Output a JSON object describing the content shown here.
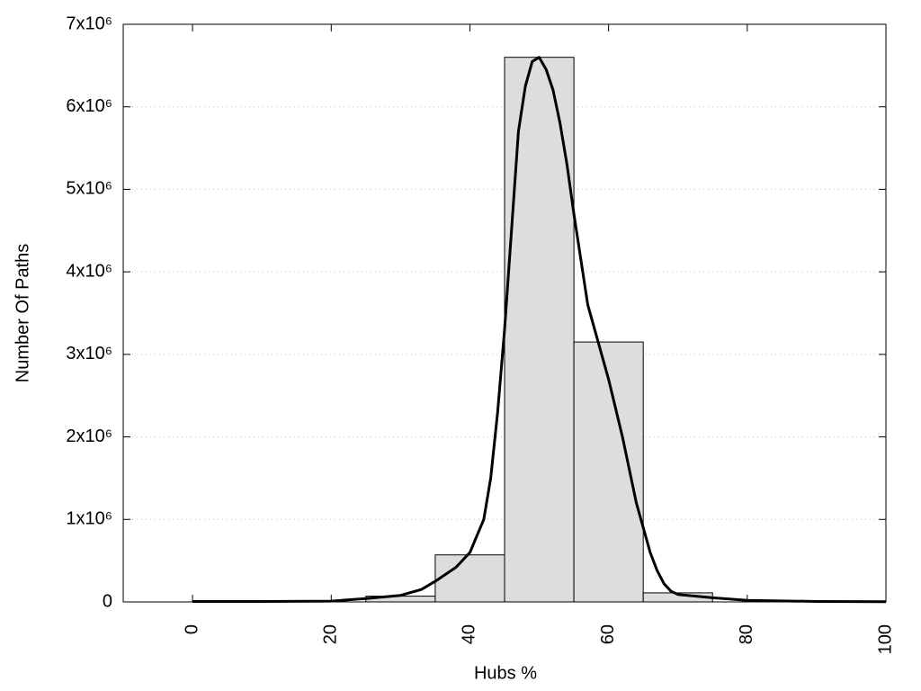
{
  "chart_data": {
    "type": "histogram",
    "xlabel": "Hubs %",
    "ylabel": "Number Of Paths",
    "bins": [
      25,
      35,
      45,
      55,
      65,
      75
    ],
    "counts": [
      70000,
      570000,
      6600000,
      3150000,
      110000
    ],
    "color": "#dddddd",
    "curve": {
      "color": "#000000",
      "x": [
        0,
        10,
        20,
        25,
        30,
        33,
        35,
        38,
        40,
        41,
        42,
        43,
        44,
        45,
        46,
        47,
        48,
        49,
        50,
        51,
        52,
        53,
        54,
        55,
        56,
        57,
        58,
        60,
        62,
        63,
        64,
        65,
        66,
        67,
        68,
        69,
        70,
        75,
        80,
        90,
        100
      ],
      "values": [
        5000,
        5000,
        10000,
        40000,
        80000,
        150000,
        250000,
        420000,
        600000,
        800000,
        1000000,
        1500000,
        2300000,
        3300000,
        4500000,
        5700000,
        6250000,
        6550000,
        6600000,
        6450000,
        6200000,
        5800000,
        5300000,
        4700000,
        4150000,
        3600000,
        3300000,
        2700000,
        2000000,
        1600000,
        1200000,
        900000,
        600000,
        380000,
        220000,
        130000,
        90000,
        50000,
        20000,
        5000,
        2000
      ]
    },
    "xlim": [
      -10,
      100
    ],
    "xticks": [
      0,
      20,
      40,
      60,
      80,
      100
    ],
    "ylim": [
      0,
      7000000
    ],
    "yticks": [
      0,
      {
        "value": 1000000,
        "label": "1x10⁶"
      },
      {
        "value": 2000000,
        "label": "2x10⁶"
      },
      {
        "value": 3000000,
        "label": "3x10⁶"
      },
      {
        "value": 4000000,
        "label": "4x10⁶"
      },
      {
        "value": 5000000,
        "label": "5x10⁶"
      },
      {
        "value": 6000000,
        "label": "6x10⁶"
      },
      {
        "value": 7000000,
        "label": "7x10⁶"
      }
    ],
    "grid": true
  }
}
